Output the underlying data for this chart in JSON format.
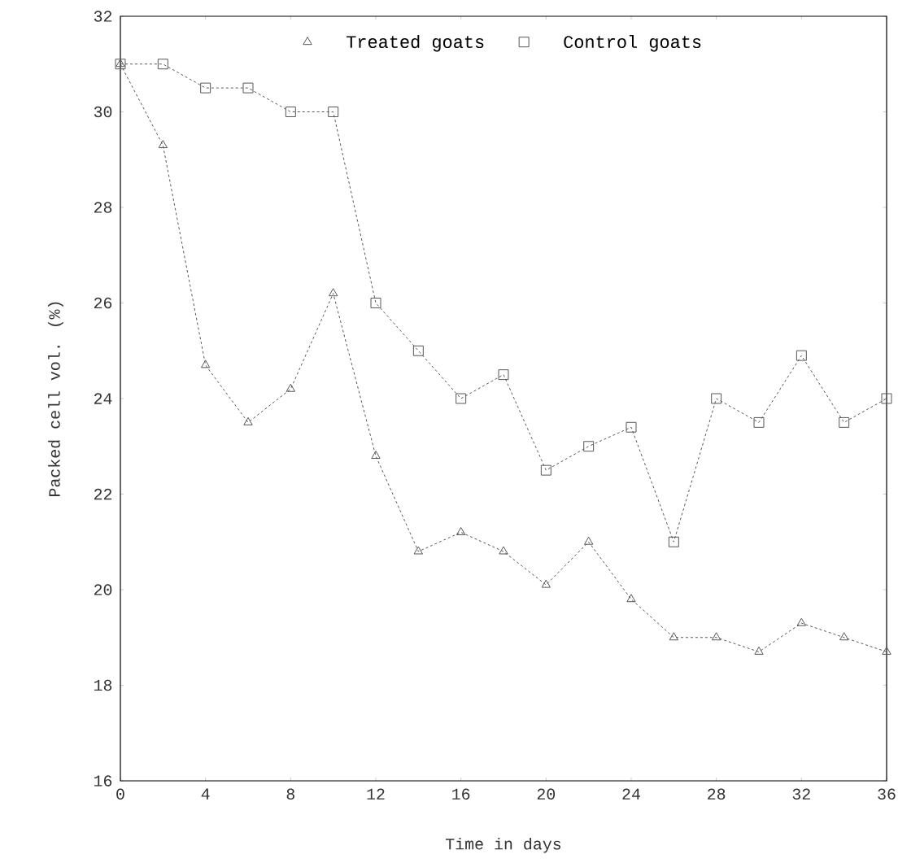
{
  "chart_data": {
    "type": "line",
    "xlabel": "Time  in  days",
    "ylabel": "Packed cell vol.   (%)",
    "x": [
      0,
      2,
      4,
      6,
      8,
      10,
      12,
      14,
      16,
      18,
      20,
      22,
      24,
      26,
      28,
      30,
      32,
      34,
      36
    ],
    "series": [
      {
        "name": "Treated goats",
        "color": "#555555",
        "marker": "triangle",
        "values": [
          31.0,
          29.3,
          24.7,
          23.5,
          24.2,
          26.2,
          22.8,
          20.8,
          21.2,
          20.8,
          20.1,
          21.0,
          19.8,
          19.0,
          19.0,
          18.7,
          19.3,
          19.0,
          18.7
        ]
      },
      {
        "name": "Control goats",
        "color": "#555555",
        "marker": "square",
        "values": [
          31.0,
          31.0,
          30.5,
          30.5,
          30.0,
          30.0,
          26.0,
          25.0,
          24.0,
          24.5,
          22.5,
          23.0,
          23.4,
          21.0,
          24.0,
          23.5,
          24.9,
          23.5,
          24.0
        ]
      }
    ],
    "xlim": [
      0,
      36
    ],
    "ylim": [
      16,
      32
    ],
    "xticks": [
      0,
      4,
      8,
      12,
      16,
      20,
      24,
      28,
      32,
      36
    ],
    "yticks": [
      16,
      18,
      20,
      22,
      24,
      26,
      28,
      30,
      32
    ],
    "line_style": "dashed",
    "legend": "top"
  }
}
